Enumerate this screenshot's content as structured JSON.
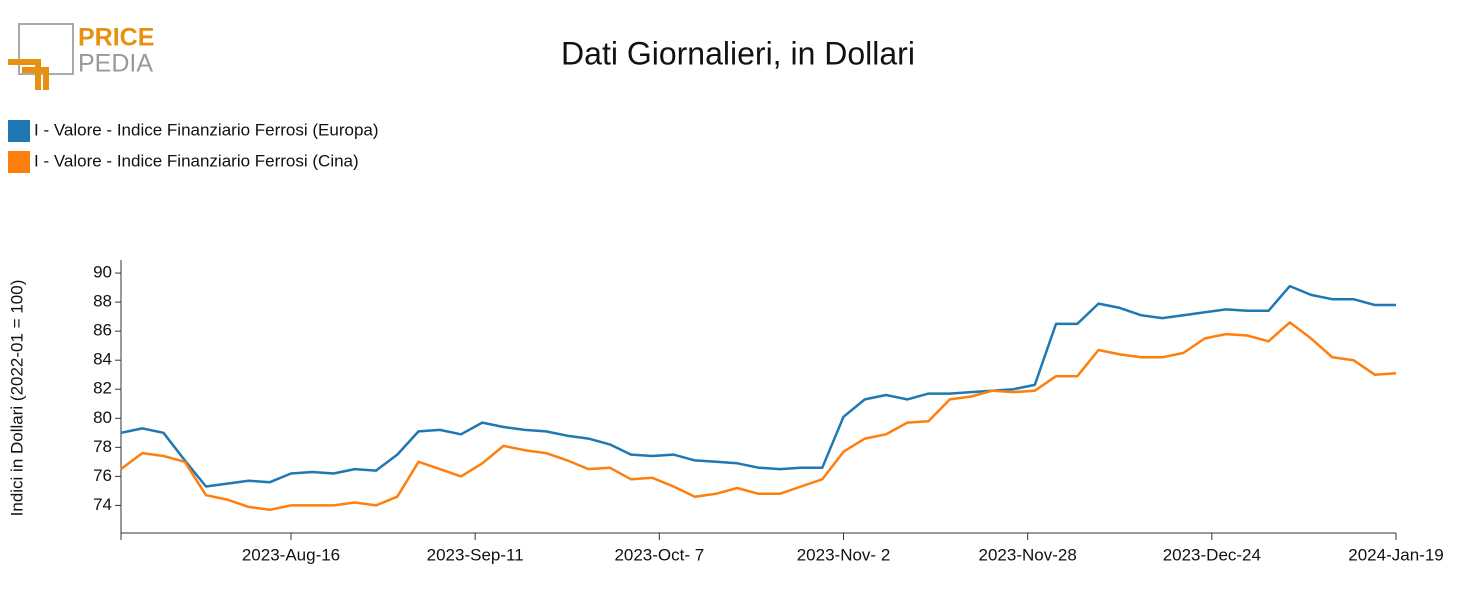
{
  "logo": {
    "line1": "PRICE",
    "line2": "PEDIA"
  },
  "chart_data": {
    "type": "line",
    "title": "Dati Giornalieri, in Dollari",
    "y_axis_label": "Indici in Dollari (2022-01 = 100)",
    "x": [
      "2023-07-23",
      "2023-07-26",
      "2023-07-29",
      "2023-08-01",
      "2023-08-04",
      "2023-08-07",
      "2023-08-10",
      "2023-08-13",
      "2023-08-16",
      "2023-08-19",
      "2023-08-22",
      "2023-08-25",
      "2023-08-28",
      "2023-08-31",
      "2023-09-03",
      "2023-09-06",
      "2023-09-09",
      "2023-09-12",
      "2023-09-15",
      "2023-09-18",
      "2023-09-21",
      "2023-09-24",
      "2023-09-27",
      "2023-09-30",
      "2023-10-03",
      "2023-10-06",
      "2023-10-09",
      "2023-10-12",
      "2023-10-15",
      "2023-10-18",
      "2023-10-21",
      "2023-10-24",
      "2023-10-27",
      "2023-10-30",
      "2023-11-02",
      "2023-11-05",
      "2023-11-08",
      "2023-11-11",
      "2023-11-14",
      "2023-11-17",
      "2023-11-20",
      "2023-11-23",
      "2023-11-26",
      "2023-11-29",
      "2023-12-02",
      "2023-12-05",
      "2023-12-08",
      "2023-12-11",
      "2023-12-14",
      "2023-12-17",
      "2023-12-20",
      "2023-12-23",
      "2023-12-26",
      "2023-12-29",
      "2024-01-01",
      "2024-01-04",
      "2024-01-07",
      "2024-01-10",
      "2024-01-13",
      "2024-01-16",
      "2024-01-19"
    ],
    "series": [
      {
        "name": "I - Valore - Indice Finanziario Ferrosi (Europa)",
        "color": "#1f77b4",
        "values": [
          79.0,
          79.3,
          79.0,
          77.1,
          75.3,
          75.5,
          75.7,
          75.6,
          76.2,
          76.3,
          76.2,
          76.5,
          76.4,
          77.5,
          79.1,
          79.2,
          78.9,
          79.7,
          79.4,
          79.2,
          79.1,
          78.8,
          78.6,
          78.2,
          77.5,
          77.4,
          77.5,
          77.1,
          77.0,
          76.9,
          76.6,
          76.5,
          76.6,
          76.6,
          80.1,
          81.3,
          81.6,
          81.3,
          81.7,
          81.7,
          81.8,
          81.9,
          82.0,
          82.3,
          86.5,
          86.5,
          87.9,
          87.6,
          87.1,
          86.9,
          87.1,
          87.3,
          87.5,
          87.4,
          87.4,
          89.1,
          88.5,
          88.2,
          88.2,
          87.8,
          87.8
        ]
      },
      {
        "name": "I - Valore - Indice Finanziario Ferrosi (Cina)",
        "color": "#ff7f0e",
        "values": [
          76.5,
          77.6,
          77.4,
          77.0,
          74.7,
          74.4,
          73.9,
          73.7,
          74.0,
          74.0,
          74.0,
          74.2,
          74.0,
          74.6,
          77.0,
          76.5,
          76.0,
          76.9,
          78.1,
          77.8,
          77.6,
          77.1,
          76.5,
          76.6,
          75.8,
          75.9,
          75.3,
          74.6,
          74.8,
          75.2,
          74.8,
          74.8,
          75.3,
          75.8,
          77.7,
          78.6,
          78.9,
          79.7,
          79.8,
          81.3,
          81.5,
          81.9,
          81.8,
          81.9,
          82.9,
          82.9,
          84.7,
          84.4,
          84.2,
          84.2,
          84.5,
          85.5,
          85.8,
          85.7,
          85.3,
          86.6,
          85.5,
          84.2,
          84.0,
          83.0,
          83.1
        ]
      }
    ],
    "xlim": [
      "2023-07-23",
      "2024-01-19"
    ],
    "xticks": [
      {
        "value": "2023-07-23",
        "label": ""
      },
      {
        "value": "2023-08-16",
        "label": "2023-Aug-16"
      },
      {
        "value": "2023-09-11",
        "label": "2023-Sep-11"
      },
      {
        "value": "2023-10-07",
        "label": "2023-Oct- 7"
      },
      {
        "value": "2023-11-02",
        "label": "2023-Nov- 2"
      },
      {
        "value": "2023-11-28",
        "label": "2023-Nov-28"
      },
      {
        "value": "2023-12-24",
        "label": "2023-Dec-24"
      },
      {
        "value": "2024-01-19",
        "label": "2024-Jan-19"
      }
    ],
    "ylim": [
      72.1,
      90.9
    ],
    "yticks": [
      74,
      76,
      78,
      80,
      82,
      84,
      86,
      88,
      90
    ],
    "legend": "top-left"
  }
}
